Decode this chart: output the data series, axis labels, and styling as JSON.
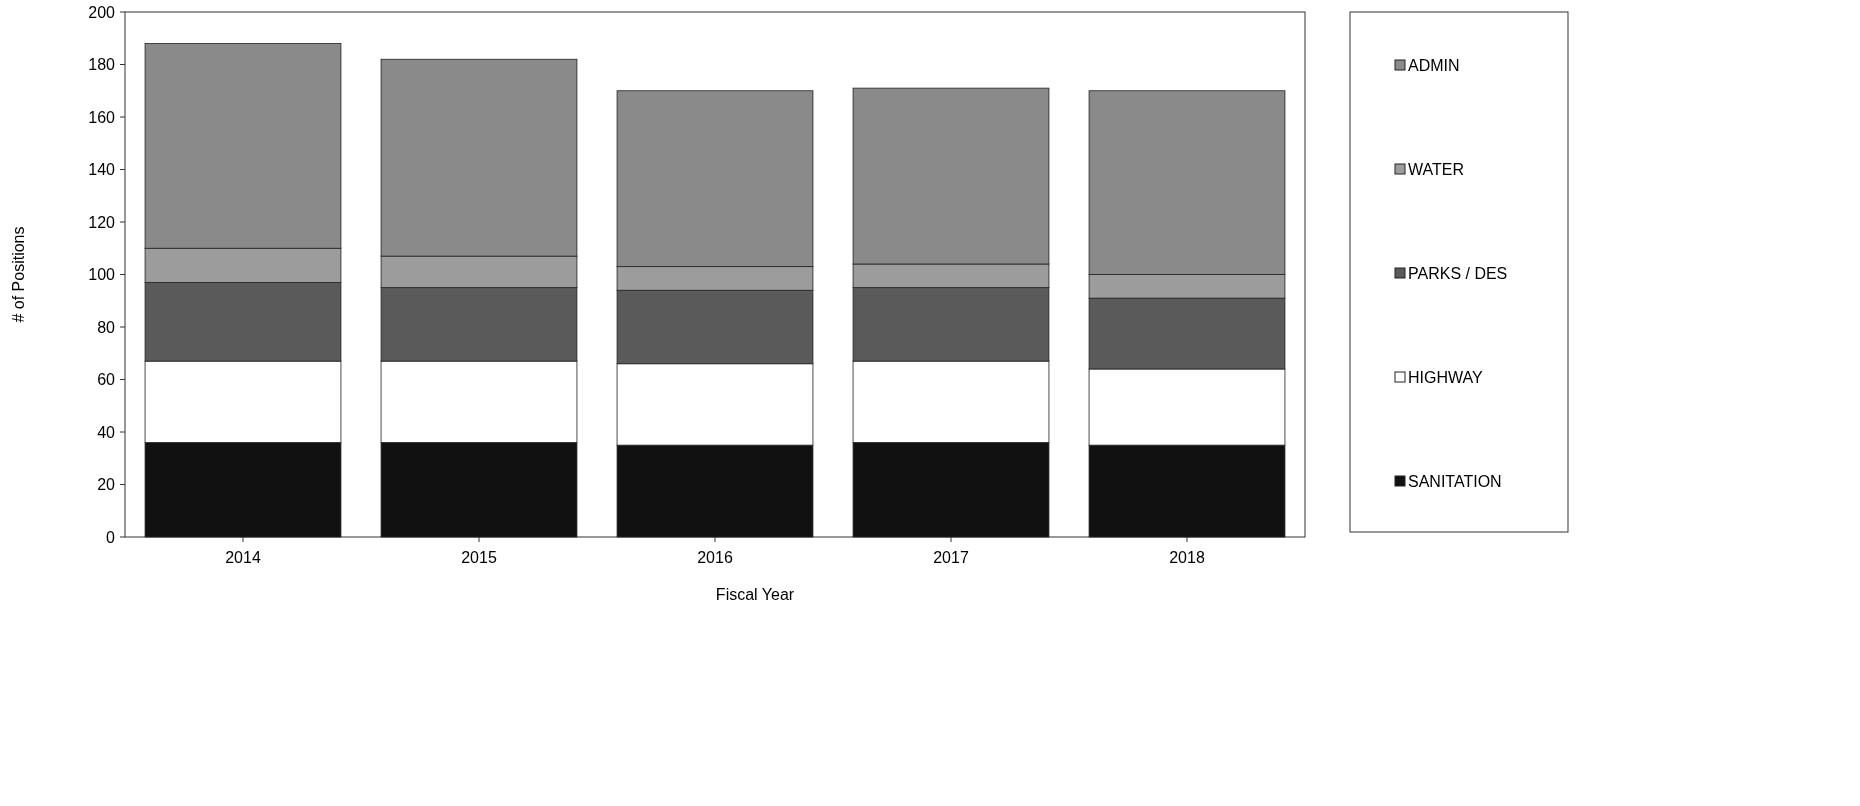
{
  "chart_data": {
    "type": "bar",
    "stacked": true,
    "xlabel": "Fiscal Year",
    "ylabel": "# of Positions",
    "categories": [
      "2014",
      "2015",
      "2016",
      "2017",
      "2018"
    ],
    "series": [
      {
        "name": "SANITATION",
        "color": "#111111",
        "values": [
          36,
          36,
          35,
          36,
          35
        ]
      },
      {
        "name": "HIGHWAY",
        "color": "#ffffff",
        "values": [
          31,
          31,
          31,
          31,
          29
        ]
      },
      {
        "name": "PARKS / DES",
        "color": "#5a5a5a",
        "values": [
          30,
          28,
          28,
          28,
          27
        ]
      },
      {
        "name": "WATER",
        "color": "#9c9c9c",
        "values": [
          13,
          12,
          9,
          9,
          9
        ]
      },
      {
        "name": "ADMIN",
        "color": "#8a8a8a",
        "values": [
          78,
          75,
          67,
          67,
          70
        ]
      }
    ],
    "ylim": [
      0,
      200
    ],
    "yticks": [
      0,
      20,
      40,
      60,
      80,
      100,
      120,
      140,
      160,
      180,
      200
    ],
    "grid": false,
    "legend": "right"
  }
}
